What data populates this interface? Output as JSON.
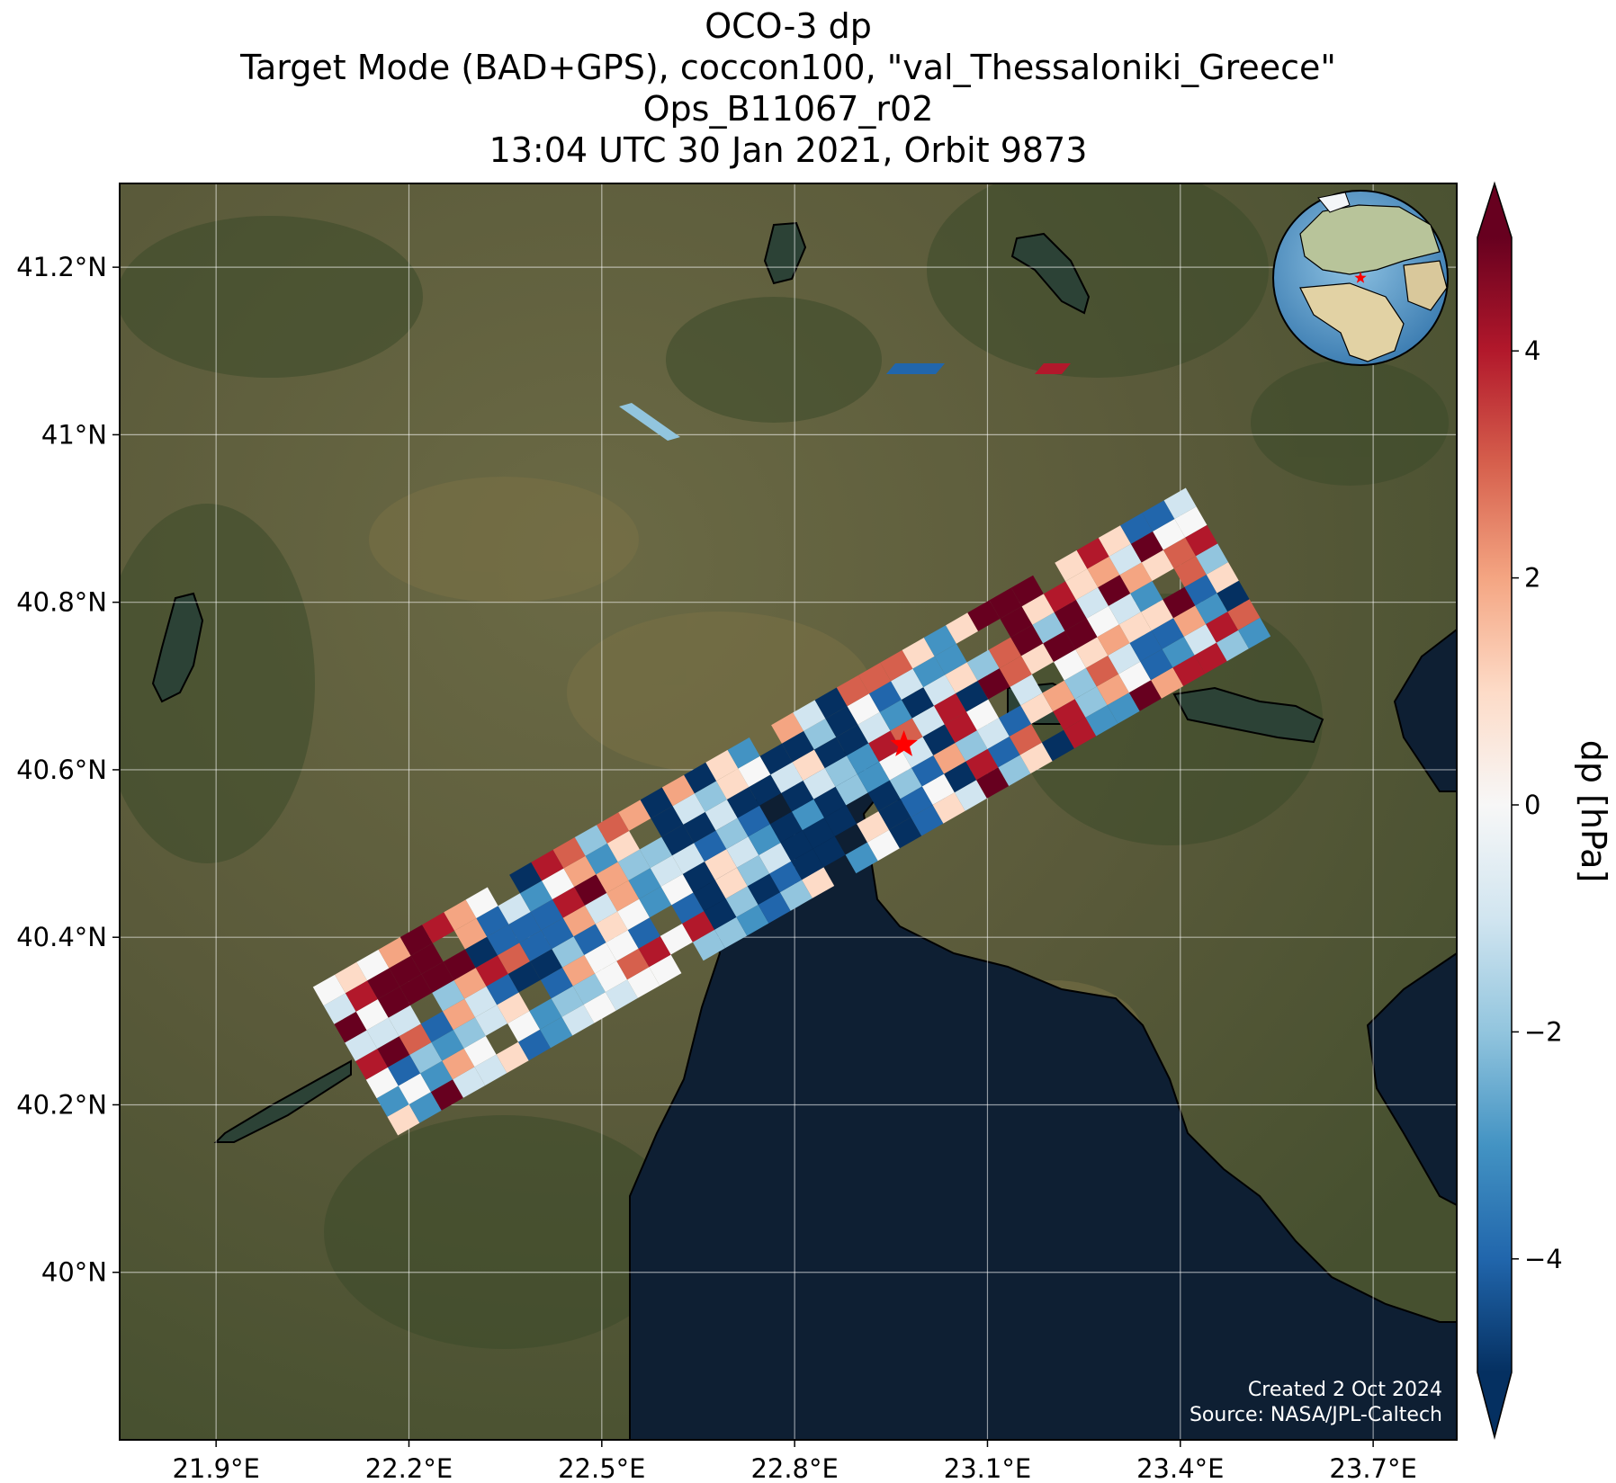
{
  "title": {
    "line1": "OCO-3 dp",
    "line2": "Target Mode (BAD+GPS), coccon100, \"val_Thessaloniki_Greece\"",
    "line3": "Ops_B11067_r02",
    "line4": "13:04 UTC 30 Jan 2021, Orbit 9873"
  },
  "map": {
    "lon_range": [
      21.75,
      23.83
    ],
    "lat_range": [
      39.8,
      41.3
    ],
    "target": {
      "lon": 22.97,
      "lat": 40.63,
      "marker": "red-star"
    },
    "land_color": "#5b5a3c",
    "sea_color": "#0e1f33",
    "x_ticks": [
      {
        "lon": 21.9,
        "label": "21.9°E"
      },
      {
        "lon": 22.2,
        "label": "22.2°E"
      },
      {
        "lon": 22.5,
        "label": "22.5°E"
      },
      {
        "lon": 22.8,
        "label": "22.8°E"
      },
      {
        "lon": 23.1,
        "label": "23.1°E"
      },
      {
        "lon": 23.4,
        "label": "23.4°E"
      },
      {
        "lon": 23.7,
        "label": "23.7°E"
      }
    ],
    "y_ticks": [
      {
        "lat": 41.2,
        "label": "41.2°N"
      },
      {
        "lat": 41.0,
        "label": "41°N"
      },
      {
        "lat": 40.8,
        "label": "40.8°N"
      },
      {
        "lat": 40.6,
        "label": "40.6°N"
      },
      {
        "lat": 40.4,
        "label": "40.4°N"
      },
      {
        "lat": 40.2,
        "label": "40.2°N"
      },
      {
        "lat": 40.0,
        "label": "40°N"
      }
    ]
  },
  "colorbar": {
    "label": "dp [hPa]",
    "colormap": "RdBu_r",
    "vmin": -5,
    "vmax": 5,
    "ticks": [
      {
        "value": 4,
        "label": "4"
      },
      {
        "value": 2,
        "label": "2"
      },
      {
        "value": 0,
        "label": "0"
      },
      {
        "value": -2,
        "label": "−2"
      },
      {
        "value": -4,
        "label": "−4"
      }
    ]
  },
  "credit": {
    "created": "Created 2 Oct 2024",
    "source": "Source: NASA/JPL-Caltech"
  },
  "globe_inset": {
    "center_lon": 22.97,
    "center_lat": 40.63,
    "marker": "red-star"
  }
}
